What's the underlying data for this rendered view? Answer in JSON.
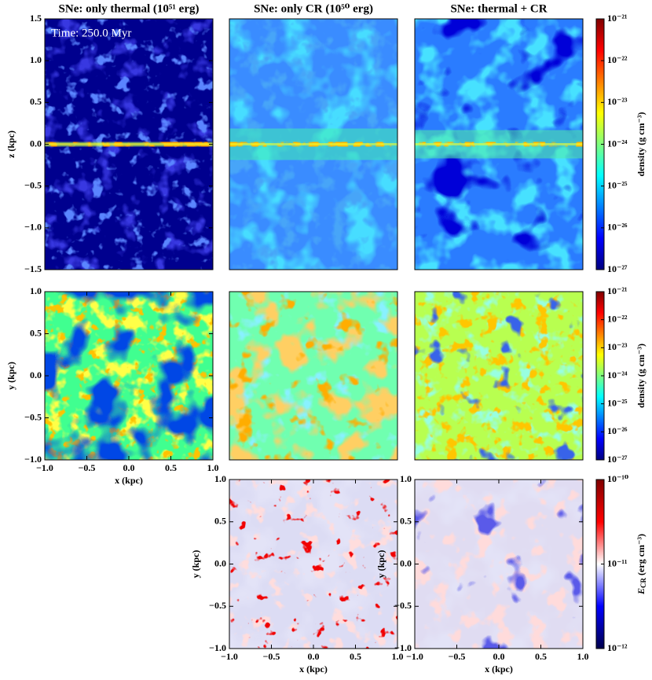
{
  "chart_data": [
    {
      "type": "heatmap",
      "title": "SNe: only thermal (10⁵¹ erg)",
      "annotation": "Time: 250.0 Myr",
      "ylabel": "z (kpc)",
      "xlim": [
        -1,
        1
      ],
      "ylim": [
        -1.5,
        1.5
      ],
      "yticks": [
        {
          "value": -1.5,
          "label": "−1.5"
        },
        {
          "value": -1,
          "label": "−1.0"
        },
        {
          "value": -0.5,
          "label": "−0.5"
        },
        {
          "value": 0,
          "label": "0.0"
        },
        {
          "value": 0.5,
          "label": "0.5"
        },
        {
          "value": 1,
          "label": "1.0"
        },
        {
          "value": 1.5,
          "label": "1.5"
        }
      ]
    },
    {
      "type": "heatmap",
      "title": "SNe: only CR (10⁵⁰ erg)",
      "xlim": [
        -1,
        1
      ],
      "ylim": [
        -1.5,
        1.5
      ]
    },
    {
      "type": "heatmap",
      "title": "SNe: thermal + CR",
      "xlim": [
        -1,
        1
      ],
      "ylim": [
        -1.5,
        1.5
      ]
    },
    {
      "type": "heatmap",
      "xlabel": "x (kpc)",
      "ylabel": "y (kpc)",
      "xlim": [
        -1,
        1
      ],
      "ylim": [
        -1,
        1
      ],
      "xticks": [
        {
          "value": -1,
          "label": "−1.0"
        },
        {
          "value": -0.5,
          "label": "−0.5"
        },
        {
          "value": 0,
          "label": "0.0"
        },
        {
          "value": 0.5,
          "label": "0.5"
        },
        {
          "value": 1,
          "label": "1.0"
        }
      ],
      "yticks": [
        {
          "value": -1,
          "label": "−1.0"
        },
        {
          "value": -0.5,
          "label": "−0.5"
        },
        {
          "value": 0,
          "label": "0.0"
        },
        {
          "value": 0.5,
          "label": "0.5"
        },
        {
          "value": 1,
          "label": "1.0"
        }
      ]
    },
    {
      "type": "heatmap",
      "xlim": [
        -1,
        1
      ],
      "ylim": [
        -1,
        1
      ]
    },
    {
      "type": "heatmap",
      "xlim": [
        -1,
        1
      ],
      "ylim": [
        -1,
        1
      ]
    },
    {
      "type": "heatmap",
      "xlabel": "x (kpc)",
      "ylabel": "y (kpc)",
      "xlim": [
        -1,
        1
      ],
      "ylim": [
        -1,
        1
      ],
      "xticks": [
        {
          "value": -1,
          "label": "−1.0"
        },
        {
          "value": -0.5,
          "label": "−0.5"
        },
        {
          "value": 0,
          "label": "0.0"
        },
        {
          "value": 0.5,
          "label": "0.5"
        },
        {
          "value": 1,
          "label": "1.0"
        }
      ],
      "yticks": [
        {
          "value": -1,
          "label": "−1.0"
        },
        {
          "value": -0.5,
          "label": "−0.5"
        },
        {
          "value": 0,
          "label": "0.0"
        },
        {
          "value": 0.5,
          "label": "0.5"
        },
        {
          "value": 1,
          "label": "1.0"
        }
      ]
    },
    {
      "type": "heatmap",
      "xlabel": "x (kpc)",
      "ylabel": "y (kpc)",
      "xlim": [
        -1,
        1
      ],
      "ylim": [
        -1,
        1
      ],
      "xticks": [
        {
          "value": -1,
          "label": "−1.0"
        },
        {
          "value": -0.5,
          "label": "−0.5"
        },
        {
          "value": 0,
          "label": "0.0"
        },
        {
          "value": 0.5,
          "label": "0.5"
        },
        {
          "value": 1,
          "label": "1.0"
        }
      ],
      "yticks": [
        {
          "value": -1,
          "label": "−1.0"
        },
        {
          "value": -0.5,
          "label": "−0.5"
        },
        {
          "value": 0,
          "label": "0.0"
        },
        {
          "value": 0.5,
          "label": "0.5"
        },
        {
          "value": 1,
          "label": "1.0"
        }
      ]
    },
    {
      "type": "colorbar",
      "label_parts": [
        "density (g cm⁻³)"
      ],
      "log": true,
      "lim": [
        1e-27,
        1e-21
      ],
      "colors": [
        "#00007f",
        "#0000ff",
        "#007fff",
        "#00ffff",
        "#7fff7f",
        "#ffff00",
        "#ff7f00",
        "#ff0000",
        "#7f0000"
      ],
      "ticks": [
        {
          "value": 1e-27,
          "label": "10⁻²⁷"
        },
        {
          "value": 1e-26,
          "label": "10⁻²⁶"
        },
        {
          "value": 1e-25,
          "label": "10⁻²⁵"
        },
        {
          "value": 1e-24,
          "label": "10⁻²⁴"
        },
        {
          "value": 1e-23,
          "label": "10⁻²³"
        },
        {
          "value": 1e-22,
          "label": "10⁻²²"
        },
        {
          "value": 1e-21,
          "label": "10⁻²¹"
        }
      ]
    },
    {
      "type": "colorbar",
      "label_parts": [
        "density (g cm⁻³)"
      ],
      "log": true,
      "lim": [
        1e-27,
        1e-21
      ],
      "colors": [
        "#00007f",
        "#0000ff",
        "#007fff",
        "#00ffff",
        "#7fff7f",
        "#ffff00",
        "#ff7f00",
        "#ff0000",
        "#7f0000"
      ],
      "ticks": [
        {
          "value": 1e-27,
          "label": "10⁻²⁷"
        },
        {
          "value": 1e-26,
          "label": "10⁻²⁶"
        },
        {
          "value": 1e-25,
          "label": "10⁻²⁵"
        },
        {
          "value": 1e-24,
          "label": "10⁻²⁴"
        },
        {
          "value": 1e-23,
          "label": "10⁻²³"
        },
        {
          "value": 1e-22,
          "label": "10⁻²²"
        },
        {
          "value": 1e-21,
          "label": "10⁻²¹"
        }
      ]
    },
    {
      "type": "colorbar",
      "label_parts": [
        "E",
        "CR",
        " (erg cm⁻³)"
      ],
      "log": true,
      "lim": [
        1e-12,
        1e-10
      ],
      "colors": [
        "#00004c",
        "#0000ff",
        "#ffffff",
        "#ff0000",
        "#7f0000"
      ],
      "ticks": [
        {
          "value": 1e-12,
          "label": "10⁻¹²"
        },
        {
          "value": 1e-11,
          "label": "10⁻¹¹"
        },
        {
          "value": 1e-10,
          "label": "10⁻¹⁰"
        }
      ]
    }
  ]
}
